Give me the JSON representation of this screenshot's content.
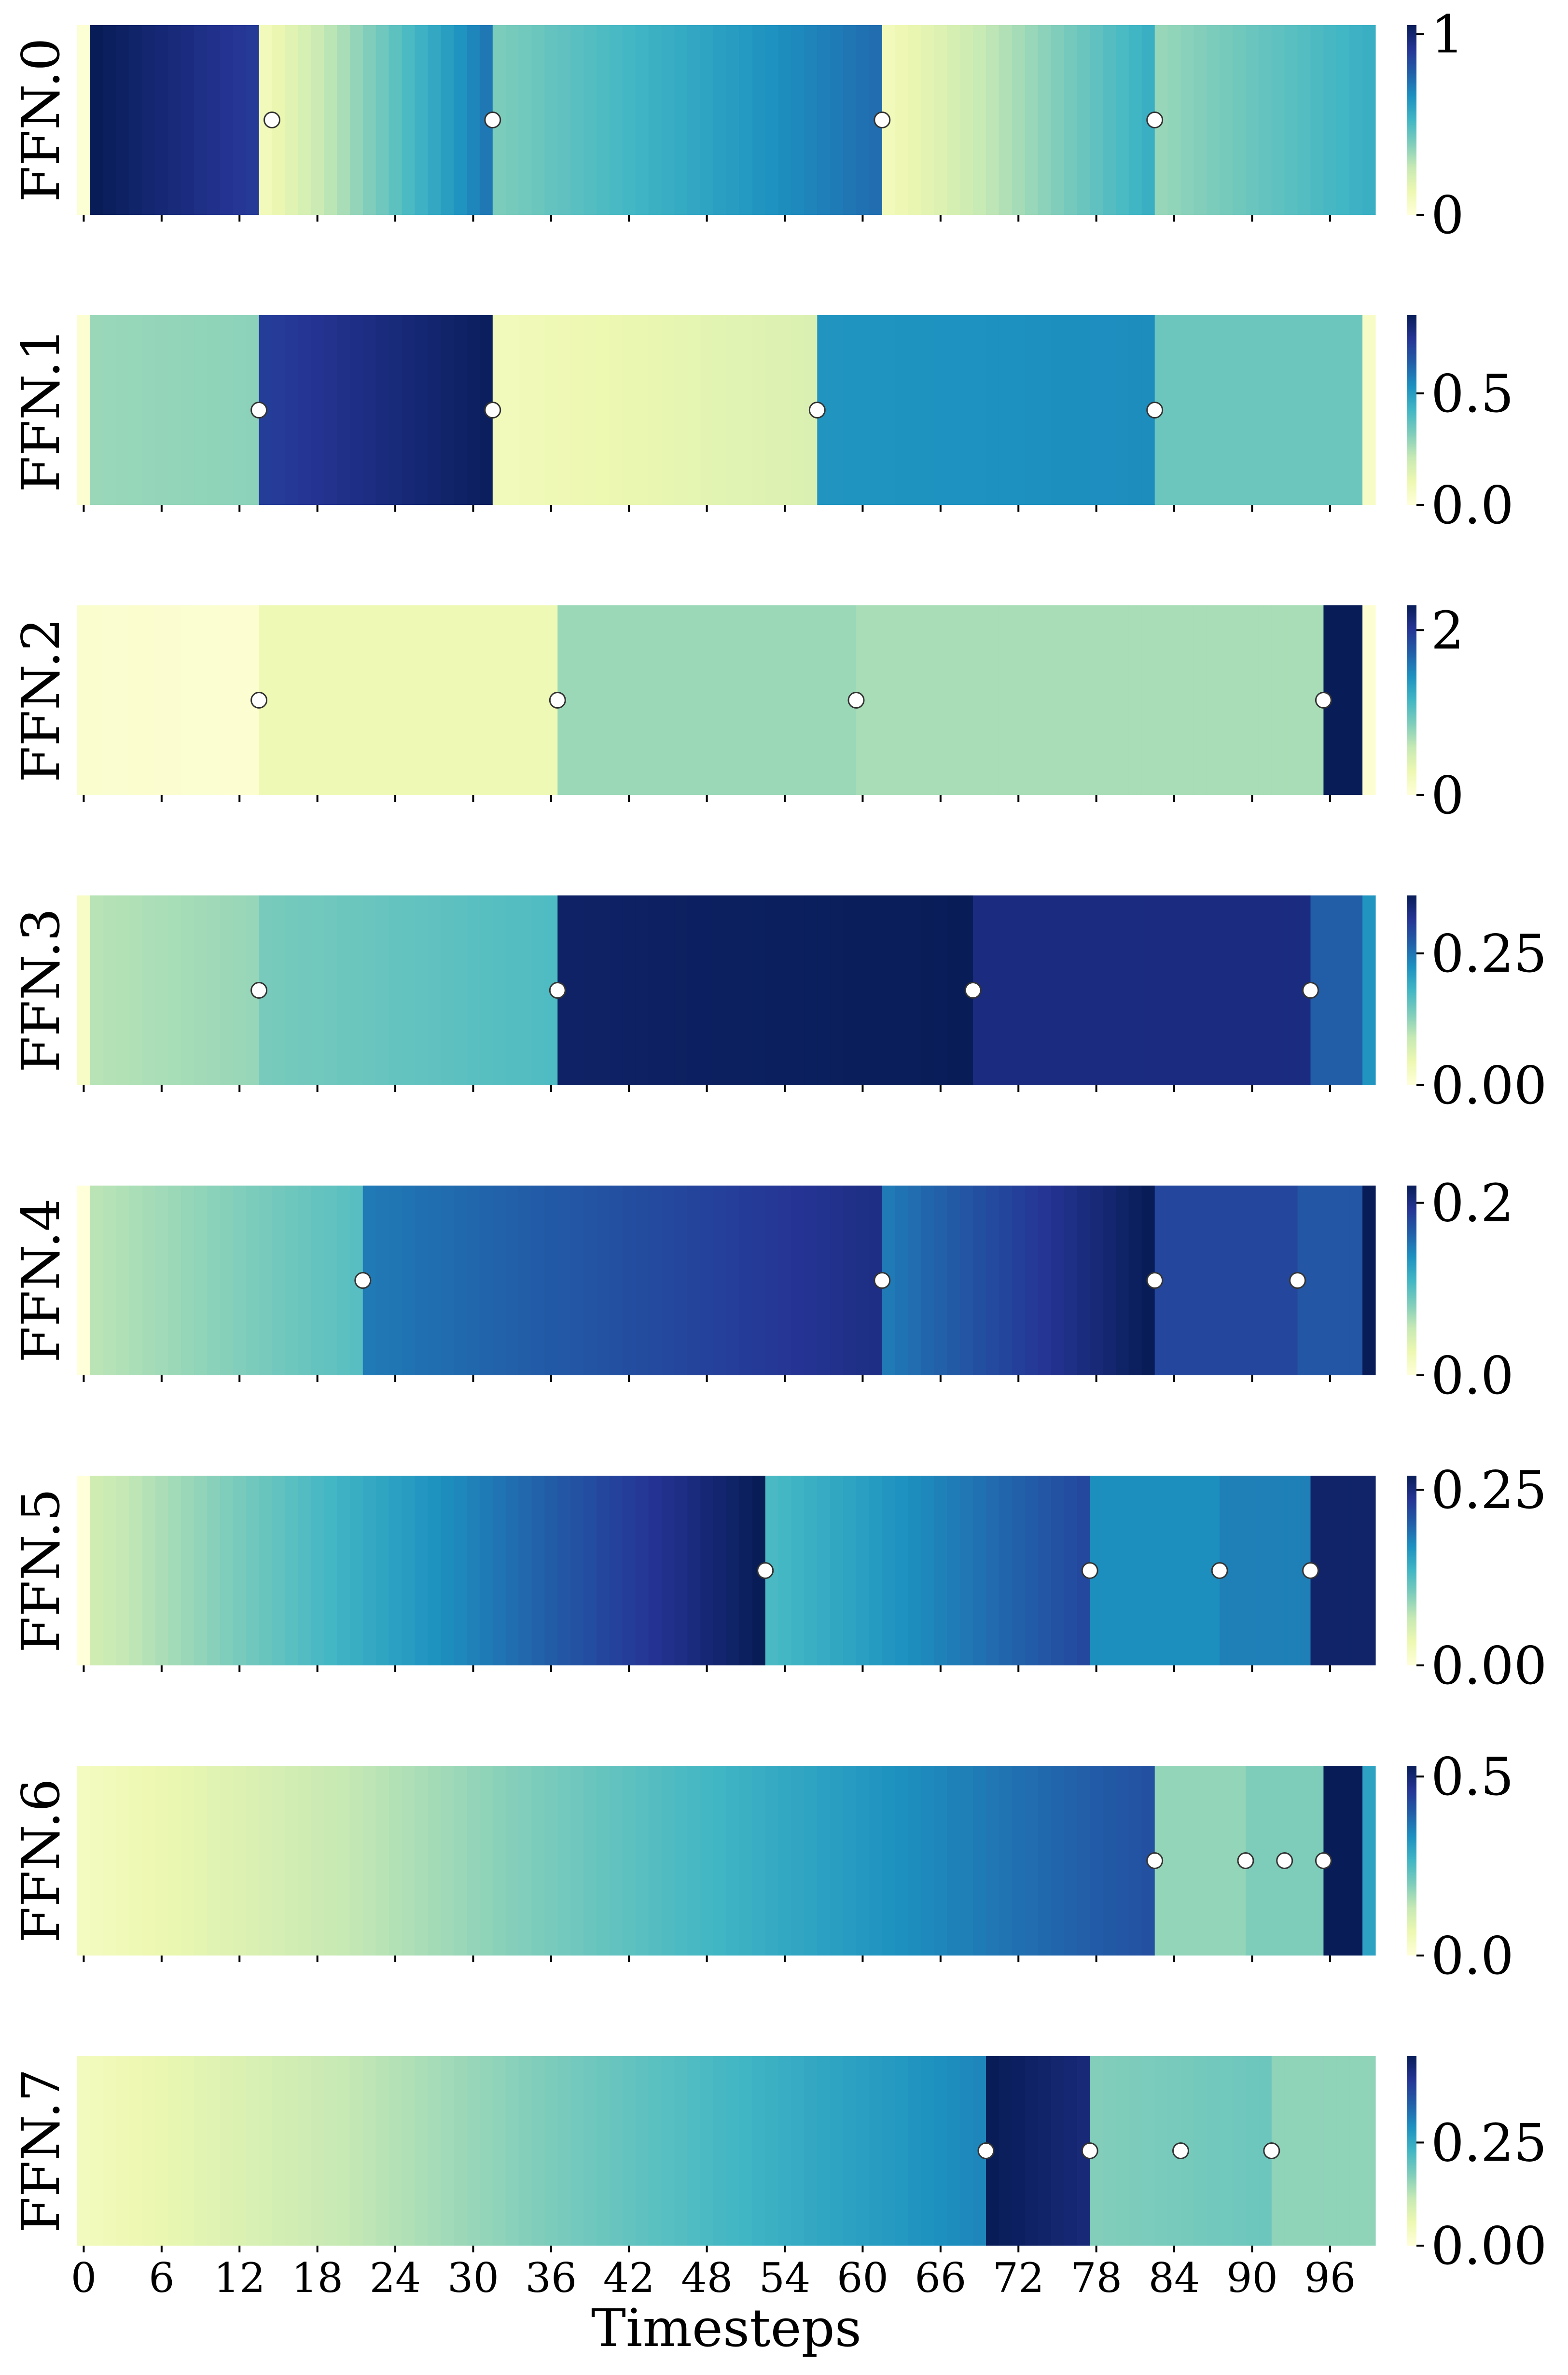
{
  "colormap": {
    "name": "YlGnBu",
    "stops": [
      "#ffffd9",
      "#edf8b1",
      "#c7e9b4",
      "#7fcdbb",
      "#41b6c4",
      "#1d91c0",
      "#225ea8",
      "#253494",
      "#081d58"
    ]
  },
  "marker": {
    "fill": "#ffffff",
    "stroke": "#333333"
  },
  "chart_data": {
    "type": "heatmap",
    "xlabel": "Timesteps",
    "x_range": [
      0,
      99
    ],
    "x_ticks": [
      0,
      6,
      12,
      18,
      24,
      30,
      36,
      42,
      48,
      54,
      60,
      66,
      72,
      78,
      84,
      90,
      96
    ],
    "x_tick_labels": [
      "0",
      "6",
      "12",
      "18",
      "24",
      "30",
      "36",
      "42",
      "48",
      "54",
      "60",
      "66",
      "72",
      "78",
      "84",
      "90",
      "96"
    ],
    "rows": [
      {
        "label": "FFN.0",
        "vmin": 0,
        "vmax": 1.05,
        "cbar_ticks": [
          0,
          1
        ],
        "cbar_tick_labels": [
          "0",
          "1"
        ],
        "markers": [
          14,
          31,
          61,
          82
        ],
        "segments": [
          {
            "start": 0,
            "end": 0,
            "v0": 0.02,
            "v1": 0.02
          },
          {
            "start": 1,
            "end": 13,
            "v0": 1.05,
            "v1": 0.9
          },
          {
            "start": 14,
            "end": 31,
            "v0": 0.1,
            "v1": 0.72
          },
          {
            "start": 32,
            "end": 61,
            "v0": 0.4,
            "v1": 0.75
          },
          {
            "start": 62,
            "end": 82,
            "v0": 0.1,
            "v1": 0.55
          },
          {
            "start": 83,
            "end": 99,
            "v0": 0.35,
            "v1": 0.55
          }
        ]
      },
      {
        "label": "FFN.1",
        "vmin": 0,
        "vmax": 0.85,
        "cbar_ticks": [
          0.0,
          0.5
        ],
        "cbar_tick_labels": [
          "0.0",
          "0.5"
        ],
        "markers": [
          13,
          31,
          56,
          82
        ],
        "segments": [
          {
            "start": 0,
            "end": 0,
            "v0": 0.02,
            "v1": 0.02
          },
          {
            "start": 1,
            "end": 13,
            "v0": 0.28,
            "v1": 0.3
          },
          {
            "start": 14,
            "end": 31,
            "v0": 0.72,
            "v1": 0.84
          },
          {
            "start": 32,
            "end": 56,
            "v0": 0.08,
            "v1": 0.16
          },
          {
            "start": 57,
            "end": 82,
            "v0": 0.52,
            "v1": 0.54
          },
          {
            "start": 83,
            "end": 98,
            "v0": 0.35,
            "v1": 0.35
          },
          {
            "start": 99,
            "end": 99,
            "v0": 0.05,
            "v1": 0.05
          }
        ]
      },
      {
        "label": "FFN.2",
        "vmin": 0,
        "vmax": 2.3,
        "cbar_ticks": [
          0,
          2
        ],
        "cbar_tick_labels": [
          "0",
          "2"
        ],
        "markers": [
          13,
          36,
          59,
          95
        ],
        "segments": [
          {
            "start": 0,
            "end": 13,
            "v0": 0.08,
            "v1": 0.05
          },
          {
            "start": 14,
            "end": 36,
            "v0": 0.25,
            "v1": 0.25
          },
          {
            "start": 37,
            "end": 59,
            "v0": 0.75,
            "v1": 0.75
          },
          {
            "start": 60,
            "end": 95,
            "v0": 0.7,
            "v1": 0.7
          },
          {
            "start": 96,
            "end": 98,
            "v0": 2.3,
            "v1": 2.3
          },
          {
            "start": 99,
            "end": 99,
            "v0": 0.05,
            "v1": 0.05
          }
        ]
      },
      {
        "label": "FFN.3",
        "vmin": 0,
        "vmax": 0.36,
        "cbar_ticks": [
          0.0,
          0.25
        ],
        "cbar_tick_labels": [
          "0.00",
          "0.25"
        ],
        "markers": [
          13,
          36,
          68,
          94
        ],
        "segments": [
          {
            "start": 0,
            "end": 0,
            "v0": 0.02,
            "v1": 0.02
          },
          {
            "start": 1,
            "end": 13,
            "v0": 0.1,
            "v1": 0.12
          },
          {
            "start": 14,
            "end": 36,
            "v0": 0.14,
            "v1": 0.17
          },
          {
            "start": 37,
            "end": 68,
            "v0": 0.35,
            "v1": 0.36
          },
          {
            "start": 69,
            "end": 94,
            "v0": 0.33,
            "v1": 0.33
          },
          {
            "start": 95,
            "end": 98,
            "v0": 0.27,
            "v1": 0.27
          },
          {
            "start": 99,
            "end": 99,
            "v0": 0.22,
            "v1": 0.22
          }
        ]
      },
      {
        "label": "FFN.4",
        "vmin": 0,
        "vmax": 0.22,
        "cbar_ticks": [
          0.0,
          0.2
        ],
        "cbar_tick_labels": [
          "0.0",
          "0.2"
        ],
        "markers": [
          21,
          61,
          82,
          93
        ],
        "segments": [
          {
            "start": 0,
            "end": 0,
            "v0": 0.0,
            "v1": 0.0
          },
          {
            "start": 1,
            "end": 21,
            "v0": 0.06,
            "v1": 0.1
          },
          {
            "start": 22,
            "end": 61,
            "v0": 0.15,
            "v1": 0.2
          },
          {
            "start": 62,
            "end": 82,
            "v0": 0.15,
            "v1": 0.22
          },
          {
            "start": 83,
            "end": 93,
            "v0": 0.18,
            "v1": 0.18
          },
          {
            "start": 94,
            "end": 98,
            "v0": 0.17,
            "v1": 0.17
          },
          {
            "start": 99,
            "end": 99,
            "v0": 0.22,
            "v1": 0.22
          }
        ]
      },
      {
        "label": "FFN.5",
        "vmin": 0,
        "vmax": 0.27,
        "cbar_ticks": [
          0.0,
          0.25
        ],
        "cbar_tick_labels": [
          "0.00",
          "0.25"
        ],
        "markers": [
          52,
          77,
          87,
          94
        ],
        "segments": [
          {
            "start": 0,
            "end": 0,
            "v0": 0.0,
            "v1": 0.0
          },
          {
            "start": 1,
            "end": 52,
            "v0": 0.06,
            "v1": 0.27
          },
          {
            "start": 53,
            "end": 77,
            "v0": 0.13,
            "v1": 0.22
          },
          {
            "start": 78,
            "end": 87,
            "v0": 0.17,
            "v1": 0.17
          },
          {
            "start": 88,
            "end": 94,
            "v0": 0.18,
            "v1": 0.18
          },
          {
            "start": 95,
            "end": 99,
            "v0": 0.26,
            "v1": 0.26
          }
        ]
      },
      {
        "label": "FFN.6",
        "vmin": 0,
        "vmax": 0.53,
        "cbar_ticks": [
          0.0,
          0.5
        ],
        "cbar_tick_labels": [
          "0.0",
          "0.5"
        ],
        "markers": [
          82,
          89,
          92,
          95
        ],
        "segments": [
          {
            "start": 0,
            "end": 82,
            "v0": 0.04,
            "v1": 0.42
          },
          {
            "start": 83,
            "end": 89,
            "v0": 0.18,
            "v1": 0.18
          },
          {
            "start": 90,
            "end": 95,
            "v0": 0.2,
            "v1": 0.2
          },
          {
            "start": 96,
            "end": 98,
            "v0": 0.53,
            "v1": 0.53
          },
          {
            "start": 99,
            "end": 99,
            "v0": 0.3,
            "v1": 0.3
          }
        ]
      },
      {
        "label": "FFN.7",
        "vmin": 0,
        "vmax": 0.46,
        "cbar_ticks": [
          0.0,
          0.25
        ],
        "cbar_tick_labels": [
          "0.00",
          "0.25"
        ],
        "markers": [
          69,
          77,
          84,
          91
        ],
        "segments": [
          {
            "start": 0,
            "end": 69,
            "v0": 0.04,
            "v1": 0.3
          },
          {
            "start": 70,
            "end": 77,
            "v0": 0.46,
            "v1": 0.43
          },
          {
            "start": 78,
            "end": 91,
            "v0": 0.17,
            "v1": 0.19
          },
          {
            "start": 92,
            "end": 99,
            "v0": 0.16,
            "v1": 0.16
          }
        ]
      }
    ]
  }
}
